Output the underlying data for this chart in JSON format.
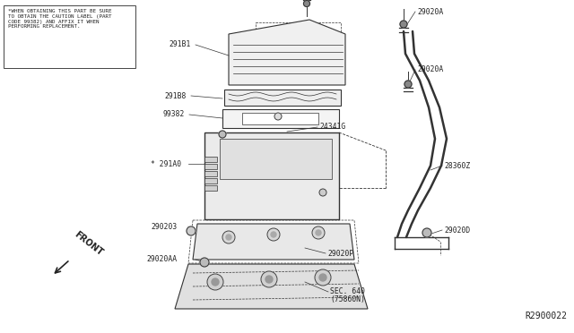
{
  "bg_color": "#ffffff",
  "line_color": "#333333",
  "text_color": "#222222",
  "fig_width": 6.4,
  "fig_height": 3.72,
  "dpi": 100,
  "warning_text": "*WHEN OBTAINING THIS PART BE SURE\nTO OBTAIN THE CAUTION LABEL (PART\nCODE 99382) AND AFFIX IT WHEN\nPERFORMING REPLACEMENT.",
  "ref_number": "R2900022",
  "front_label": "FRONT"
}
